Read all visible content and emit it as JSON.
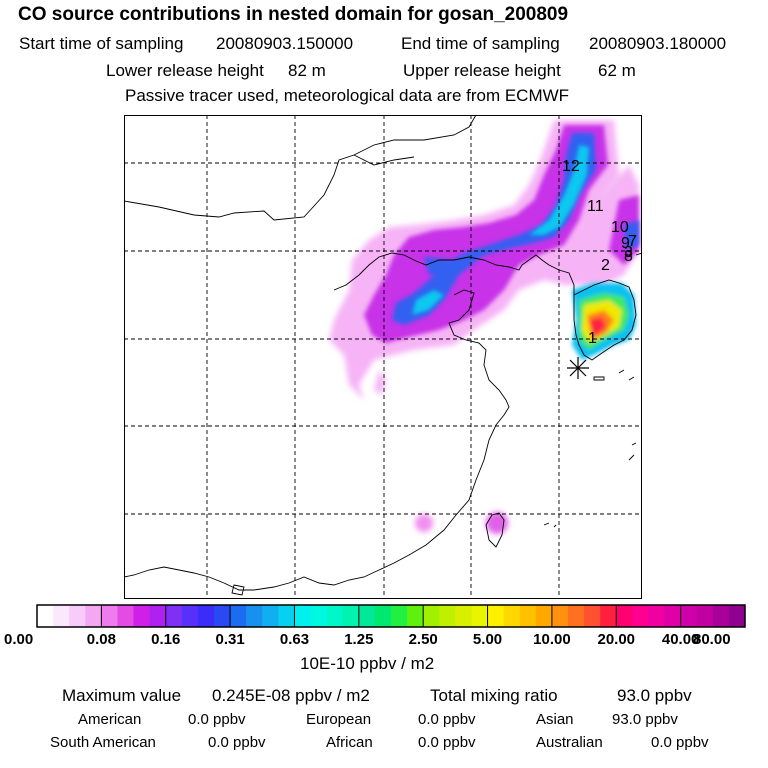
{
  "header": {
    "title": "CO  source contributions in nested domain for gosan_200809",
    "start_label": "Start time of sampling",
    "start_value": "20080903.150000",
    "end_label": "End time of sampling",
    "end_value": "20080903.180000",
    "lower_label": "Lower release height",
    "lower_value": "82 m",
    "upper_label": "Upper release height",
    "upper_value": "62 m",
    "tracer_note": "Passive tracer used, meteorological data are from ECMWF"
  },
  "map": {
    "trajectory_labels": [
      "1",
      "2",
      "3",
      "8",
      "9",
      "7",
      "10",
      "11",
      "12"
    ],
    "receptor_marker": "asterisk"
  },
  "colorbar": {
    "tick_labels": [
      "0.00",
      "0.08",
      "0.16",
      "0.31",
      "0.63",
      "1.25",
      "2.50",
      "5.00",
      "10.00",
      "20.00",
      "40.00",
      "80.00"
    ],
    "colors": [
      [
        "#ffffff",
        "#fce8fc",
        "#f8ccf8",
        "#f4a8f4"
      ],
      [
        "#ee7cee",
        "#e44ae4",
        "#d020e8",
        "#b020f0"
      ],
      [
        "#8030f4",
        "#5830fc",
        "#3c2cf8",
        "#2a48f4"
      ],
      [
        "#1a6cf0",
        "#1890f0",
        "#10b0f0",
        "#08d0f0"
      ],
      [
        "#00f0f0",
        "#00f8e0",
        "#00f8c8",
        "#00f4b0"
      ],
      [
        "#00e898",
        "#00e870",
        "#20f040",
        "#60f010"
      ],
      [
        "#a0f000",
        "#c0f000",
        "#d8f000",
        "#e8f400"
      ],
      [
        "#fff000",
        "#ffd800",
        "#ffc000",
        "#ffa800"
      ],
      [
        "#ff9010",
        "#ff7020",
        "#ff5030",
        "#ff2040"
      ],
      [
        "#ff0070",
        "#ff0090",
        "#f000a0",
        "#e000a8"
      ],
      [
        "#d000a8",
        "#c000a0",
        "#a80098",
        "#900090"
      ]
    ],
    "unit": "10E-10 ppbv / m2"
  },
  "summary": {
    "max_label": "Maximum value",
    "max_value": "0.245E-08 ppbv / m2",
    "total_label": "Total mixing ratio",
    "total_value": "93.0 ppbv",
    "regions": [
      {
        "name": "American",
        "value": "0.0 ppbv"
      },
      {
        "name": "European",
        "value": "0.0 ppbv"
      },
      {
        "name": "Asian",
        "value": "93.0 ppbv"
      },
      {
        "name": "South American",
        "value": "0.0 ppbv"
      },
      {
        "name": "African",
        "value": "0.0 ppbv"
      },
      {
        "name": "Australian",
        "value": "0.0 ppbv"
      }
    ]
  }
}
